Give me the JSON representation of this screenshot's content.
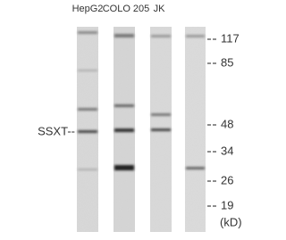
{
  "lanes": [
    {
      "label": "HepG2"
    },
    {
      "label": "COLO 205"
    },
    {
      "label": "JK"
    }
  ],
  "target_label": "SSXT--",
  "markers": [
    {
      "label": "117"
    },
    {
      "label": "85"
    },
    {
      "label": "48"
    },
    {
      "label": "34"
    },
    {
      "label": "26"
    },
    {
      "label": "19"
    }
  ],
  "unit": "(kD)"
}
